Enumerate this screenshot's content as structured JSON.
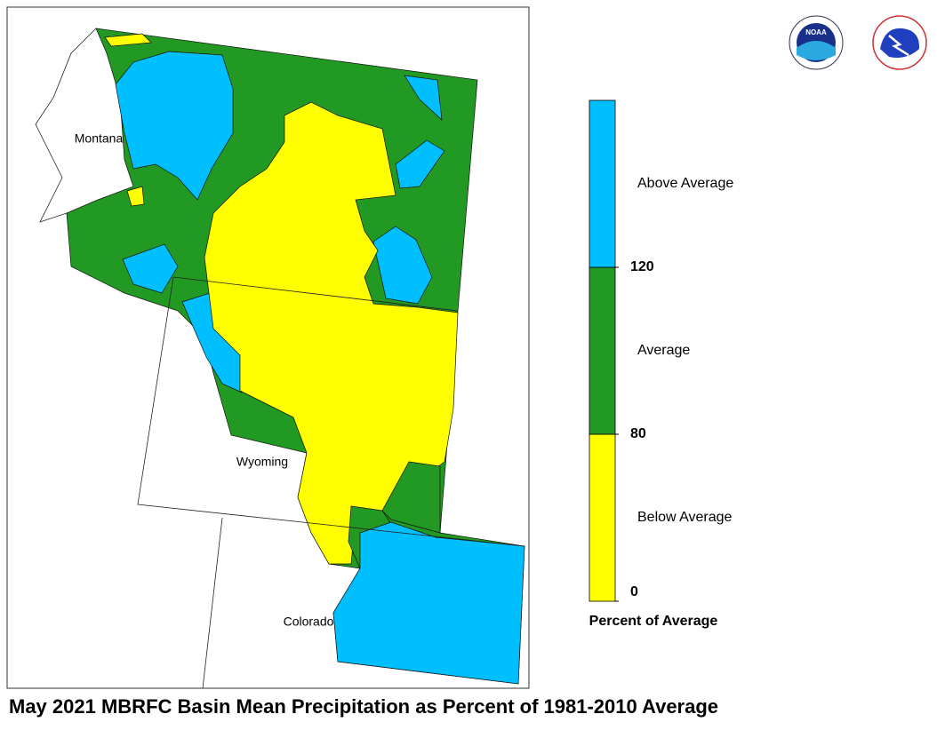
{
  "title": "May 2021 MBRFC Basin Mean Precipitation as Percent of 1981-2010 Average",
  "map": {
    "state_labels": [
      "Montana",
      "Wyoming",
      "Colorado"
    ]
  },
  "legend": {
    "title": "Percent of Average",
    "ticks": [
      0,
      80,
      120
    ],
    "classes": [
      {
        "label": "Below Average",
        "color": "#ffff00"
      },
      {
        "label": "Average",
        "color": "#229922"
      },
      {
        "label": "Above Average",
        "color": "#00bfff"
      }
    ]
  },
  "logos": {
    "noaa": "NOAA"
  }
}
